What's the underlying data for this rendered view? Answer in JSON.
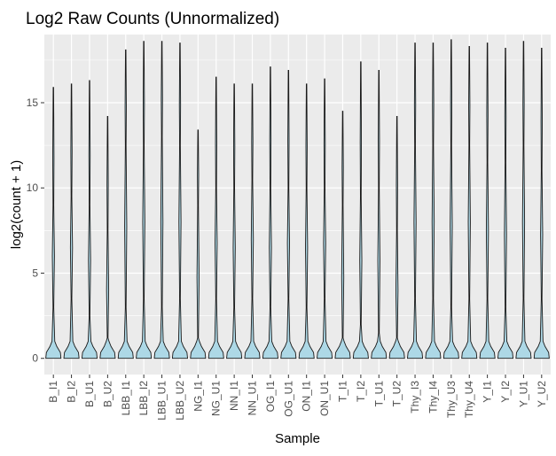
{
  "chart_data": {
    "type": "violin",
    "title": "Log2 Raw Counts (Unnormalized)",
    "xlabel": "Sample",
    "ylabel": "log2(count + 1)",
    "ylim": [
      -0.95,
      19.0
    ],
    "yticks": [
      0,
      5,
      10,
      15
    ],
    "grid": true,
    "fill_color": "#add8e6",
    "outline_color": "#1a1a1a",
    "panel_background": "#ebebeb",
    "grid_color": "#ffffff",
    "categories": [
      "B_I1",
      "B_I2",
      "B_U1",
      "B_U2",
      "LBB_I1",
      "LBB_I2",
      "LBB_U1",
      "LBB_U2",
      "NG_I1",
      "NG_U1",
      "NN_I1",
      "NN_U1",
      "OG_I1",
      "OG_U1",
      "ON_I1",
      "ON_U1",
      "T_I1",
      "T_I2",
      "T_U1",
      "T_U2",
      "Thy_I3",
      "Thy_I4",
      "Thy_U3",
      "Thy_U4",
      "Y_I1",
      "Y_I2",
      "Y_U1",
      "Y_U2"
    ],
    "max_values": [
      15.9,
      16.1,
      16.3,
      14.2,
      18.1,
      18.6,
      18.6,
      18.5,
      13.4,
      16.5,
      16.1,
      16.1,
      17.1,
      16.9,
      16.1,
      16.4,
      14.5,
      17.4,
      16.9,
      14.2,
      18.5,
      18.5,
      18.7,
      18.3,
      18.5,
      18.2,
      18.6,
      18.2
    ],
    "body_lower": [
      3.0,
      3.5,
      2.5,
      0.5,
      3.0,
      3.5,
      3.0,
      3.5,
      0.5,
      3.5,
      3.0,
      3.5,
      3.0,
      3.5,
      3.0,
      3.5,
      0.5,
      2.0,
      1.5,
      0.5,
      3.5,
      3.5,
      3.0,
      3.5,
      3.5,
      3.0,
      3.5,
      3.5
    ],
    "body_upper": [
      9.0,
      9.5,
      9.0,
      7.5,
      12.5,
      12.5,
      13.0,
      12.5,
      9.0,
      10.0,
      10.0,
      10.5,
      10.0,
      10.0,
      10.0,
      10.0,
      9.0,
      9.5,
      10.0,
      7.5,
      12.5,
      12.5,
      12.5,
      12.5,
      11.5,
      11.5,
      12.5,
      11.0
    ]
  }
}
